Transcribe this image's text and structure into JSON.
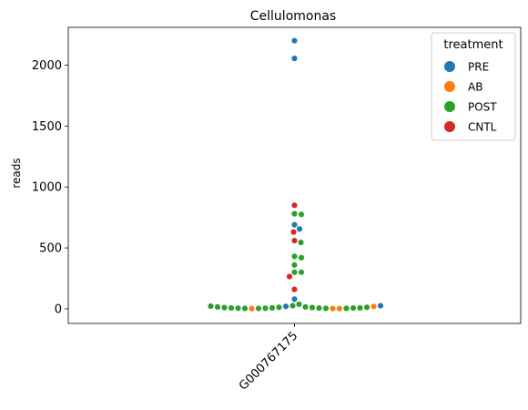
{
  "chart_data": {
    "type": "swarm",
    "title": "Cellulomonas",
    "xlabel": "",
    "ylabel": "reads",
    "categories": [
      "G000767175"
    ],
    "ylim": [
      -120,
      2310
    ],
    "yticks": [
      0,
      500,
      1000,
      1500,
      2000
    ],
    "legend": {
      "title": "treatment",
      "placement": "top-right",
      "entries": [
        {
          "name": "PRE",
          "color": "#1f77b4"
        },
        {
          "name": "AB",
          "color": "#ff7f0e"
        },
        {
          "name": "POST",
          "color": "#2ca02c"
        },
        {
          "name": "CNTL",
          "color": "#d62728"
        }
      ]
    },
    "points": [
      {
        "treatment": "PRE",
        "value": 2200
      },
      {
        "treatment": "PRE",
        "value": 2055
      },
      {
        "treatment": "CNTL",
        "value": 850
      },
      {
        "treatment": "POST",
        "value": 780
      },
      {
        "treatment": "POST",
        "value": 775
      },
      {
        "treatment": "PRE",
        "value": 690
      },
      {
        "treatment": "PRE",
        "value": 655
      },
      {
        "treatment": "CNTL",
        "value": 630
      },
      {
        "treatment": "CNTL",
        "value": 560
      },
      {
        "treatment": "POST",
        "value": 545
      },
      {
        "treatment": "POST",
        "value": 430
      },
      {
        "treatment": "POST",
        "value": 420
      },
      {
        "treatment": "POST",
        "value": 360
      },
      {
        "treatment": "POST",
        "value": 300
      },
      {
        "treatment": "POST",
        "value": 300
      },
      {
        "treatment": "CNTL",
        "value": 265
      },
      {
        "treatment": "CNTL",
        "value": 160
      },
      {
        "treatment": "PRE",
        "value": 80
      },
      {
        "treatment": "POST",
        "value": 38
      },
      {
        "treatment": "POST",
        "value": 25
      },
      {
        "treatment": "PRE",
        "value": 20
      },
      {
        "treatment": "POST",
        "value": 15
      },
      {
        "treatment": "POST",
        "value": 12
      },
      {
        "treatment": "POST",
        "value": 10
      },
      {
        "treatment": "POST",
        "value": 8
      },
      {
        "treatment": "POST",
        "value": 6
      },
      {
        "treatment": "POST",
        "value": 5
      },
      {
        "treatment": "POST",
        "value": 4
      },
      {
        "treatment": "POST",
        "value": 3
      },
      {
        "treatment": "AB",
        "value": 2
      },
      {
        "treatment": "AB",
        "value": 2
      },
      {
        "treatment": "AB",
        "value": 2
      },
      {
        "treatment": "POST",
        "value": 3
      },
      {
        "treatment": "POST",
        "value": 4
      },
      {
        "treatment": "POST",
        "value": 5
      },
      {
        "treatment": "POST",
        "value": 6
      },
      {
        "treatment": "POST",
        "value": 7
      },
      {
        "treatment": "POST",
        "value": 8
      },
      {
        "treatment": "POST",
        "value": 10
      },
      {
        "treatment": "POST",
        "value": 12
      },
      {
        "treatment": "POST",
        "value": 15
      },
      {
        "treatment": "AB",
        "value": 20
      },
      {
        "treatment": "POST",
        "value": 22
      },
      {
        "treatment": "PRE",
        "value": 25
      }
    ]
  }
}
